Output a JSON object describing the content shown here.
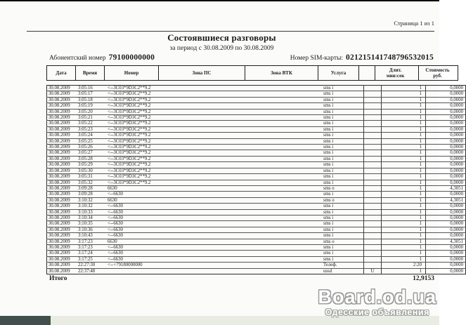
{
  "page": {
    "page_indicator": "Страница 1 из 1",
    "title": "Состоявшиеся разговоры",
    "subtitle": "за период с 30.08.2009 по 30.08.2009",
    "subscriber_label": "Абонентский номер",
    "subscriber_number": "79100000000",
    "sim_label": "Номер SIM-карты:",
    "sim_number": "021215141748796532015"
  },
  "table": {
    "columns": [
      {
        "key": "date",
        "label": "Дата"
      },
      {
        "key": "time",
        "label": "Время"
      },
      {
        "key": "number",
        "label": "Номер"
      },
      {
        "key": "zone_ps",
        "label": "Зона ПС"
      },
      {
        "key": "zone_vtk",
        "label": "Зона ВТК"
      },
      {
        "key": "service",
        "label": "Услуга"
      },
      {
        "key": "flag",
        "label": ""
      },
      {
        "key": "duration",
        "label": "Длит.\nмин:сек"
      },
      {
        "key": "cost",
        "label": "Стоимость\nруб."
      }
    ],
    "rows": [
      [
        "30.08.2009",
        "3:05:16",
        "<--3C03*9D3C2**9.2",
        "",
        "",
        "sms i",
        "",
        "1",
        "0,0000"
      ],
      [
        "30.08.2009",
        "3:05:17",
        "<--3C03*9D3C2**9.2",
        "",
        "",
        "sms i",
        "",
        "1",
        "0,0000"
      ],
      [
        "30.08.2009",
        "3:05:18",
        "<--3C03*9D3C2**9.2",
        "",
        "",
        "sms i",
        "",
        "1",
        "0,0000"
      ],
      [
        "30.08.2009",
        "3:05:19",
        "<--3C03*9D3C2**9.2",
        "",
        "",
        "sms i",
        "",
        "1",
        "0,0000"
      ],
      [
        "30.08.2009",
        "3:05:20",
        "<--3C03*9D3C2**9.2",
        "",
        "",
        "sms i",
        "",
        "1",
        "0,0000"
      ],
      [
        "30.08.2009",
        "3:05:21",
        "<--3C03*9D3C2**9.2",
        "",
        "",
        "sms i",
        "",
        "1",
        "0,0000"
      ],
      [
        "30.08.2009",
        "3:05:22",
        "<--3C03*9D3C2**9.2",
        "",
        "",
        "sms i",
        "",
        "1",
        "0,0000"
      ],
      [
        "30.08.2009",
        "3:05:23",
        "<--3C03*9D3C2**9.2",
        "",
        "",
        "sms i",
        "",
        "1",
        "0,0000"
      ],
      [
        "30.08.2009",
        "3:05:24",
        "<--3C03*9D3C2**9.2",
        "",
        "",
        "sms i",
        "",
        "1",
        "0,0000"
      ],
      [
        "30.08.2009",
        "3:05:25",
        "<--3C03*9D3C2**9.2",
        "",
        "",
        "sms i",
        "",
        "1",
        "0,0000"
      ],
      [
        "30.08.2009",
        "3:05:26",
        "<--3C03*9D3C2**9.2",
        "",
        "",
        "sms i",
        "",
        "1",
        "0,0000"
      ],
      [
        "30.08.2009",
        "3:05:27",
        "<--3C03*9D3C2**9.2",
        "",
        "",
        "sms i",
        "",
        "1",
        "0,0000"
      ],
      [
        "30.08.2009",
        "3:05:28",
        "<--3C03*9D3C2**9.2",
        "",
        "",
        "sms i",
        "",
        "1",
        "0,0000"
      ],
      [
        "30.08.2009",
        "3:05:29",
        "<--3C03*9D3C2**9.2",
        "",
        "",
        "sms i",
        "",
        "1",
        "0,0000"
      ],
      [
        "30.08.2009",
        "3:05:30",
        "<--3C03*9D3C2**9.2",
        "",
        "",
        "sms i",
        "",
        "1",
        "0,0000"
      ],
      [
        "30.08.2009",
        "3:05:31",
        "<--3C03*9D3C2**9.2",
        "",
        "",
        "sms i",
        "",
        "1",
        "0,0000"
      ],
      [
        "30.08.2009",
        "3:05:32",
        "<--3C03*9D3C2**9.2",
        "",
        "",
        "sms i",
        "",
        "1",
        "0,0000"
      ],
      [
        "30.08.2009",
        "3:09:28",
        "6630",
        "",
        "",
        "sms o",
        "",
        "1",
        "4,3051"
      ],
      [
        "30.08.2009",
        "3:09:28",
        "<--6630",
        "",
        "",
        "sms i",
        "",
        "1",
        "0,0000"
      ],
      [
        "30.08.2009",
        "3:10:32",
        "6630",
        "",
        "",
        "sms o",
        "",
        "1",
        "4,3051"
      ],
      [
        "30.08.2009",
        "3:10:32",
        "<--6630",
        "",
        "",
        "sms i",
        "",
        "1",
        "0,0000"
      ],
      [
        "30.08.2009",
        "3:10:33",
        "<--6630",
        "",
        "",
        "sms i",
        "",
        "1",
        "0,0000"
      ],
      [
        "30.08.2009",
        "3:10:34",
        "<--6630",
        "",
        "",
        "sms i",
        "",
        "1",
        "0,0000"
      ],
      [
        "30.08.2009",
        "3:10:35",
        "<--6630",
        "",
        "",
        "sms i",
        "",
        "1",
        "0,0000"
      ],
      [
        "30.08.2009",
        "3:10:36",
        "<--6630",
        "",
        "",
        "sms i",
        "",
        "1",
        "0,0000"
      ],
      [
        "30.08.2009",
        "3:10:43",
        "<--6630",
        "",
        "",
        "sms i",
        "",
        "1",
        "0,0000"
      ],
      [
        "30.08.2009",
        "3:17:23",
        "6630",
        "",
        "",
        "sms o",
        "",
        "1",
        "4,3051"
      ],
      [
        "30.08.2009",
        "3:17:23",
        "<--6630",
        "",
        "",
        "sms i",
        "",
        "1",
        "0,0000"
      ],
      [
        "30.08.2009",
        "3:17:24",
        "<--6630",
        "",
        "",
        "sms i",
        "",
        "1",
        "0,0000"
      ],
      [
        "30.08.2009",
        "3:17:25",
        "<--6630",
        "",
        "",
        "sms i",
        "",
        "1",
        "0,0000"
      ],
      [
        "30.08.2009",
        "22:27:30",
        "<--+79180000000",
        "",
        "",
        "Телеф.",
        "",
        "2:20",
        "0,0000"
      ],
      [
        "30.08.2009",
        "22:37:48",
        "",
        "",
        "",
        "ussd",
        "U",
        "1",
        "0,0000"
      ]
    ]
  },
  "footer": {
    "total_label": "Итого",
    "total_value": "12,9153"
  },
  "watermark": {
    "line1": "Board.od.ua",
    "line2": "Одесские объявления"
  },
  "colors": {
    "watermark_outline": "#9d9d9d",
    "bottom_band": "#e9ece2",
    "bottom_band_block": "#41504d",
    "top_strip": "#0b0b0b"
  }
}
